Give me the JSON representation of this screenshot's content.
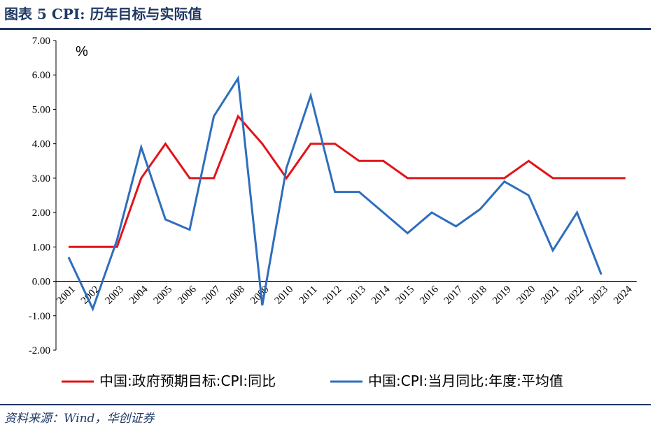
{
  "header": {
    "title": "图表 5   CPI:  历年目标与实际值"
  },
  "footer": {
    "source": "资料来源：Wind，华创证券"
  },
  "chart_data": {
    "type": "line",
    "unit_label": "%",
    "categories": [
      "2001",
      "2002",
      "2003",
      "2004",
      "2005",
      "2006",
      "2007",
      "2008",
      "2009",
      "2010",
      "2011",
      "2012",
      "2013",
      "2014",
      "2015",
      "2016",
      "2017",
      "2018",
      "2019",
      "2020",
      "2021",
      "2022",
      "2023",
      "2024"
    ],
    "y_ticks": [
      "7.00",
      "6.00",
      "5.00",
      "4.00",
      "3.00",
      "2.00",
      "1.00",
      "0.00",
      "-1.00",
      "-2.00"
    ],
    "ylim": [
      -2,
      7
    ],
    "grid": false,
    "legend_position": "bottom",
    "series": [
      {
        "name": "中国:政府预期目标:CPI:同比",
        "color": "#e0151b",
        "values": [
          1.0,
          1.0,
          1.0,
          3.0,
          4.0,
          3.0,
          3.0,
          4.8,
          4.0,
          3.0,
          4.0,
          4.0,
          3.5,
          3.5,
          3.0,
          3.0,
          3.0,
          3.0,
          3.0,
          3.5,
          3.0,
          3.0,
          3.0,
          3.0
        ]
      },
      {
        "name": "中国:CPI:当月同比:年度:平均值",
        "color": "#2e6ebd",
        "values": [
          0.7,
          -0.8,
          1.2,
          3.9,
          1.8,
          1.5,
          4.8,
          5.9,
          -0.7,
          3.3,
          5.4,
          2.6,
          2.6,
          2.0,
          1.4,
          2.0,
          1.6,
          2.1,
          2.9,
          2.5,
          0.9,
          2.0,
          0.2,
          null
        ]
      }
    ]
  }
}
